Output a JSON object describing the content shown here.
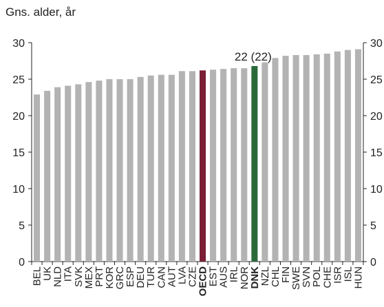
{
  "chart_data": {
    "type": "bar",
    "ylabel": "Gns. alder, år",
    "ylim": [
      0,
      30
    ],
    "yticks": [
      0,
      5,
      10,
      15,
      20,
      25,
      30
    ],
    "secondary_y_axis": true,
    "grid": false,
    "annotation": {
      "category": "DNK",
      "text": "22 (22)"
    },
    "categories": [
      "BEL",
      "UK",
      "NLD",
      "ITA",
      "SVK",
      "MEX",
      "PRT",
      "KOR",
      "GRC",
      "ESP",
      "DEU",
      "TUR",
      "CAN",
      "AUT",
      "LVA",
      "CZE",
      "OECD",
      "EST",
      "AUS",
      "IRL",
      "NOR",
      "DNK",
      "NZL",
      "CHL",
      "FIN",
      "SWE",
      "SVN",
      "POL",
      "CHE",
      "ISR",
      "ISL",
      "HUN"
    ],
    "values": [
      22.9,
      23.4,
      23.9,
      24.1,
      24.3,
      24.6,
      24.8,
      25.0,
      25.0,
      25.0,
      25.3,
      25.5,
      25.6,
      25.6,
      26.1,
      26.1,
      26.2,
      26.3,
      26.4,
      26.5,
      26.5,
      26.8,
      27.3,
      27.9,
      28.2,
      28.3,
      28.3,
      28.4,
      28.5,
      28.8,
      29.0,
      29.1
    ],
    "highlights": {
      "OECD": "#7a1f35",
      "DNK": "#2a6a3a"
    },
    "bold_categories": [
      "OECD",
      "DNK"
    ],
    "colors": {
      "default_bar": "#b3b3b3",
      "axis": "#222222"
    }
  }
}
